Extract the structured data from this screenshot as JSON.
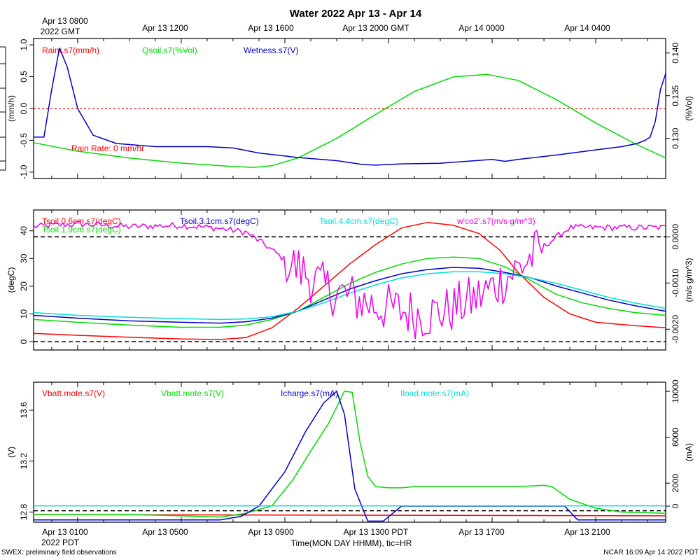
{
  "chart_data": {
    "type": "line",
    "title": "Water 2022 Apr 13 - Apr 14",
    "top_axis": {
      "first_label": [
        "Apr 13 0800",
        "2022 GMT"
      ],
      "labels": [
        "Apr 13 1200",
        "Apr 13 1600",
        "Apr 13 2000 GMT",
        "Apr 14 0000",
        "Apr 14 0400"
      ]
    },
    "bottom_axis": {
      "first_label": [
        "Apr 13 0100",
        "2022 PDT"
      ],
      "labels": [
        "Apr 13 0500",
        "Apr 13 0900",
        "Apr 13 1300 PDT",
        "Apr 13 1700",
        "Apr 13 2100"
      ],
      "xlabel": "Time(MON DAY HHMM), tic=HR",
      "x_range_hours_pdt": [
        23.3,
        47.7
      ]
    },
    "footer_left": "SWEX: preliminary field observations",
    "footer_right": "NCAR 16:09 Apr 14 2022 PDT",
    "panels": [
      {
        "id": "water",
        "ylabel_left": "(mm/h)",
        "ylabel_right": "(%Vol)",
        "ylim_left": [
          -1.1,
          1.1
        ],
        "ylim_right": [
          0.1253,
          0.1417
        ],
        "left_ticks": [
          "-1.0",
          "-0.5",
          "0.0",
          "0.5",
          "1.0"
        ],
        "right_ticks": [
          "0.130",
          "0.135",
          "0.140"
        ],
        "annotation": "Rain Rate: 0 mm/hr",
        "series": [
          {
            "name": "Rainr.s7(mm/h)",
            "color": "#ff0000",
            "axis": "left",
            "x": [
              23.3,
              47.7
            ],
            "values": [
              0.0,
              0.0
            ]
          },
          {
            "name": "Qsoil.s7(%Vol)",
            "color": "#00dd00",
            "axis": "right",
            "x": [
              23.3,
              25,
              27,
              29,
              31,
              31.8,
              32.5,
              33.5,
              35,
              36.5,
              38,
              39.5,
              40.8,
              42,
              43.5,
              45,
              46.5,
              47.7
            ],
            "values": [
              0.1295,
              0.1285,
              0.1277,
              0.1271,
              0.1267,
              0.1266,
              0.1268,
              0.1277,
              0.13,
              0.1328,
              0.1355,
              0.1372,
              0.1375,
              0.1368,
              0.1345,
              0.1318,
              0.1294,
              0.1277
            ]
          },
          {
            "name": "Wetness.s7(V)",
            "color": "#0000cc",
            "axis": "left",
            "x": [
              23.3,
              23.7,
              24.0,
              24.3,
              24.6,
              25.0,
              25.6,
              26.5,
              28,
              30,
              31,
              32,
              33.5,
              35,
              36,
              36.5,
              37.5,
              39,
              40,
              41,
              41.5,
              42,
              43.5,
              45,
              46,
              46.6,
              46.9,
              47.1,
              47.3,
              47.5,
              47.7
            ],
            "values": [
              -0.45,
              -0.45,
              0.3,
              0.95,
              0.65,
              0.0,
              -0.42,
              -0.55,
              -0.6,
              -0.6,
              -0.62,
              -0.7,
              -0.77,
              -0.82,
              -0.88,
              -0.89,
              -0.87,
              -0.86,
              -0.83,
              -0.8,
              -0.83,
              -0.8,
              -0.73,
              -0.65,
              -0.6,
              -0.55,
              -0.5,
              -0.45,
              -0.2,
              0.3,
              0.55
            ]
          }
        ]
      },
      {
        "id": "soil",
        "ylabel_left": "(degC)",
        "ylabel_right": "(m/s g/m^3)",
        "ylim_left": [
          -3,
          47.5
        ],
        "ylim_right": [
          -0.00245,
          0.00058
        ],
        "left_ticks": [
          "0",
          "10",
          "20",
          "30",
          "40"
        ],
        "right_ticks": [
          "-0.0020",
          "-0.0010",
          "0.0000"
        ],
        "series": [
          {
            "name": "Tsoil.0.6cm.s7(degC)",
            "color": "#ff0000",
            "axis": "left",
            "x": [
              23.3,
              25,
              27,
              29,
              30.5,
              31.5,
              32.5,
              33.5,
              34.5,
              35.5,
              36.5,
              37.5,
              38.5,
              39.5,
              40.5,
              41.3,
              42,
              43,
              44,
              45,
              46.5,
              47.7
            ],
            "values": [
              3,
              2.3,
              1.6,
              1.0,
              0.8,
              1.5,
              5,
              12,
              20,
              28,
              35,
              41,
              43,
              42,
              39,
              33,
              25,
              16,
              10,
              7,
              5.8,
              5
            ]
          },
          {
            "name": "Tsoil.1.9cm.s7(degC)",
            "color": "#00dd00",
            "axis": "left",
            "x": [
              23.3,
              25,
              27,
              29,
              30.5,
              31.5,
              32.5,
              33.5,
              34.5,
              35.5,
              36.5,
              37.5,
              38.5,
              39.5,
              40.5,
              41.5,
              42.5,
              43.5,
              44.5,
              45.5,
              46.5,
              47.7
            ],
            "values": [
              8,
              7,
              6,
              5.2,
              5.2,
              6,
              8,
              11,
              16,
              21,
              25,
              28,
              30,
              30.5,
              30,
              27,
              22,
              17,
              14,
              12,
              10.5,
              9.5
            ]
          },
          {
            "name": "Tsoil.3.1cm.s7(degC)",
            "color": "#0000cc",
            "axis": "left",
            "x": [
              23.3,
              25,
              27,
              29,
              30.5,
              31.5,
              32.5,
              33.5,
              34.5,
              35.5,
              36.5,
              37.5,
              38.5,
              39.5,
              40.5,
              41.5,
              42.5,
              43.5,
              44.5,
              45.5,
              46.5,
              47.7
            ],
            "values": [
              9.5,
              8.5,
              7.5,
              7,
              6.7,
              7.2,
              8.5,
              11,
              15,
              19,
              22,
              24.5,
              26,
              26.8,
              26.5,
              25,
              23,
              20,
              17.5,
              15,
              13,
              11
            ]
          },
          {
            "name": "Tsoil.4.4cm.s7(degC)",
            "color": "#00dddd",
            "axis": "left",
            "x": [
              23.3,
              25,
              27,
              29,
              30.5,
              31.5,
              32.5,
              33.5,
              34.5,
              35.5,
              36.5,
              37.5,
              38.5,
              39.5,
              40.5,
              41.5,
              42.5,
              43.5,
              44.5,
              45.5,
              46.5,
              47.7
            ],
            "values": [
              10.5,
              9.5,
              8.8,
              8.3,
              8,
              8.2,
              9,
              11,
              14,
              17.5,
              20.5,
              23,
              24.5,
              25.2,
              25.2,
              24.5,
              23,
              21,
              18.5,
              16,
              14,
              12
            ]
          },
          {
            "name": "w'co2'.s7(m/s g/m^3)",
            "color": "#ee00ee",
            "axis": "right",
            "noise": true,
            "x": [
              23.3,
              25,
              27,
              29,
              30.5,
              31.5,
              32.3,
              33,
              33.8,
              34.5,
              35.5,
              36.5,
              37.5,
              38.3,
              39.3,
              40.5,
              41.5,
              42.2,
              43,
              44,
              45.5,
              47.7
            ],
            "values": [
              0.00022,
              0.00028,
              0.00022,
              0.00025,
              0.00018,
              0.0001,
              -0.0002,
              -0.0005,
              -0.0008,
              -0.0011,
              -0.0013,
              -0.0015,
              -0.0016,
              -0.0017,
              -0.0016,
              -0.0013,
              -0.0009,
              -0.0006,
              -0.0002,
              0.0002,
              0.0002,
              0.0002
            ]
          }
        ],
        "dashed_refs": [
          {
            "axis": "left",
            "value": 0
          },
          {
            "axis": "right",
            "value": 0.0
          }
        ]
      },
      {
        "id": "power",
        "ylabel_left": "(V)",
        "ylabel_right": "(mA)",
        "ylim_left": [
          12.72,
          13.82
        ],
        "ylim_right": [
          -1400,
          10800
        ],
        "left_ticks": [
          "12.8",
          "13.2",
          "13.6"
        ],
        "right_ticks": [
          "0",
          "2000",
          "6000",
          "10000"
        ],
        "series": [
          {
            "name": "Vbatt.mote.s7(V)",
            "color": "#ff0000",
            "axis": "left",
            "x": [
              23.3,
              47.7
            ],
            "values": [
              12.78,
              12.77
            ]
          },
          {
            "name": "Vbatt.mote.s7(V)",
            "color": "#00dd00",
            "axis": "left",
            "x": [
              23.3,
              25,
              27,
              29,
              30.5,
              31.5,
              32.5,
              33.3,
              34,
              34.7,
              35.3,
              35.6,
              35.9,
              36.2,
              36.5,
              37,
              37.5,
              38,
              40,
              42,
              43,
              43.3,
              44,
              45,
              46,
              47.7
            ],
            "values": [
              12.78,
              12.78,
              12.78,
              12.77,
              12.76,
              12.79,
              12.85,
              13.05,
              13.28,
              13.5,
              13.75,
              13.74,
              13.35,
              13.08,
              13.0,
              12.99,
              12.99,
              13.0,
              13.0,
              13.0,
              13.01,
              13.0,
              12.9,
              12.83,
              12.8,
              12.79
            ]
          },
          {
            "name": "Icharge.s7(mA)",
            "color": "#0000cc",
            "axis": "right",
            "x": [
              23.3,
              30.5,
              31.3,
              32,
              33,
              33.8,
              34.5,
              35.0,
              35.3,
              35.7,
              36.2,
              36.8,
              37.5,
              38.5,
              40,
              42,
              43.8,
              44.3,
              47.7
            ],
            "values": [
              -1200,
              -1200,
              -900,
              0,
              3000,
              6500,
              9000,
              10000,
              8000,
              1500,
              -1300,
              -1300,
              0,
              0,
              0,
              0,
              0,
              -1200,
              -1200
            ]
          },
          {
            "name": "Iload.mote.s7(mA)",
            "color": "#00dddd",
            "axis": "right",
            "x": [
              23.3,
              47.7
            ],
            "values": [
              30,
              30
            ]
          }
        ],
        "dashed_refs": [
          {
            "axis": "left",
            "value": 12.81
          }
        ]
      }
    ]
  }
}
